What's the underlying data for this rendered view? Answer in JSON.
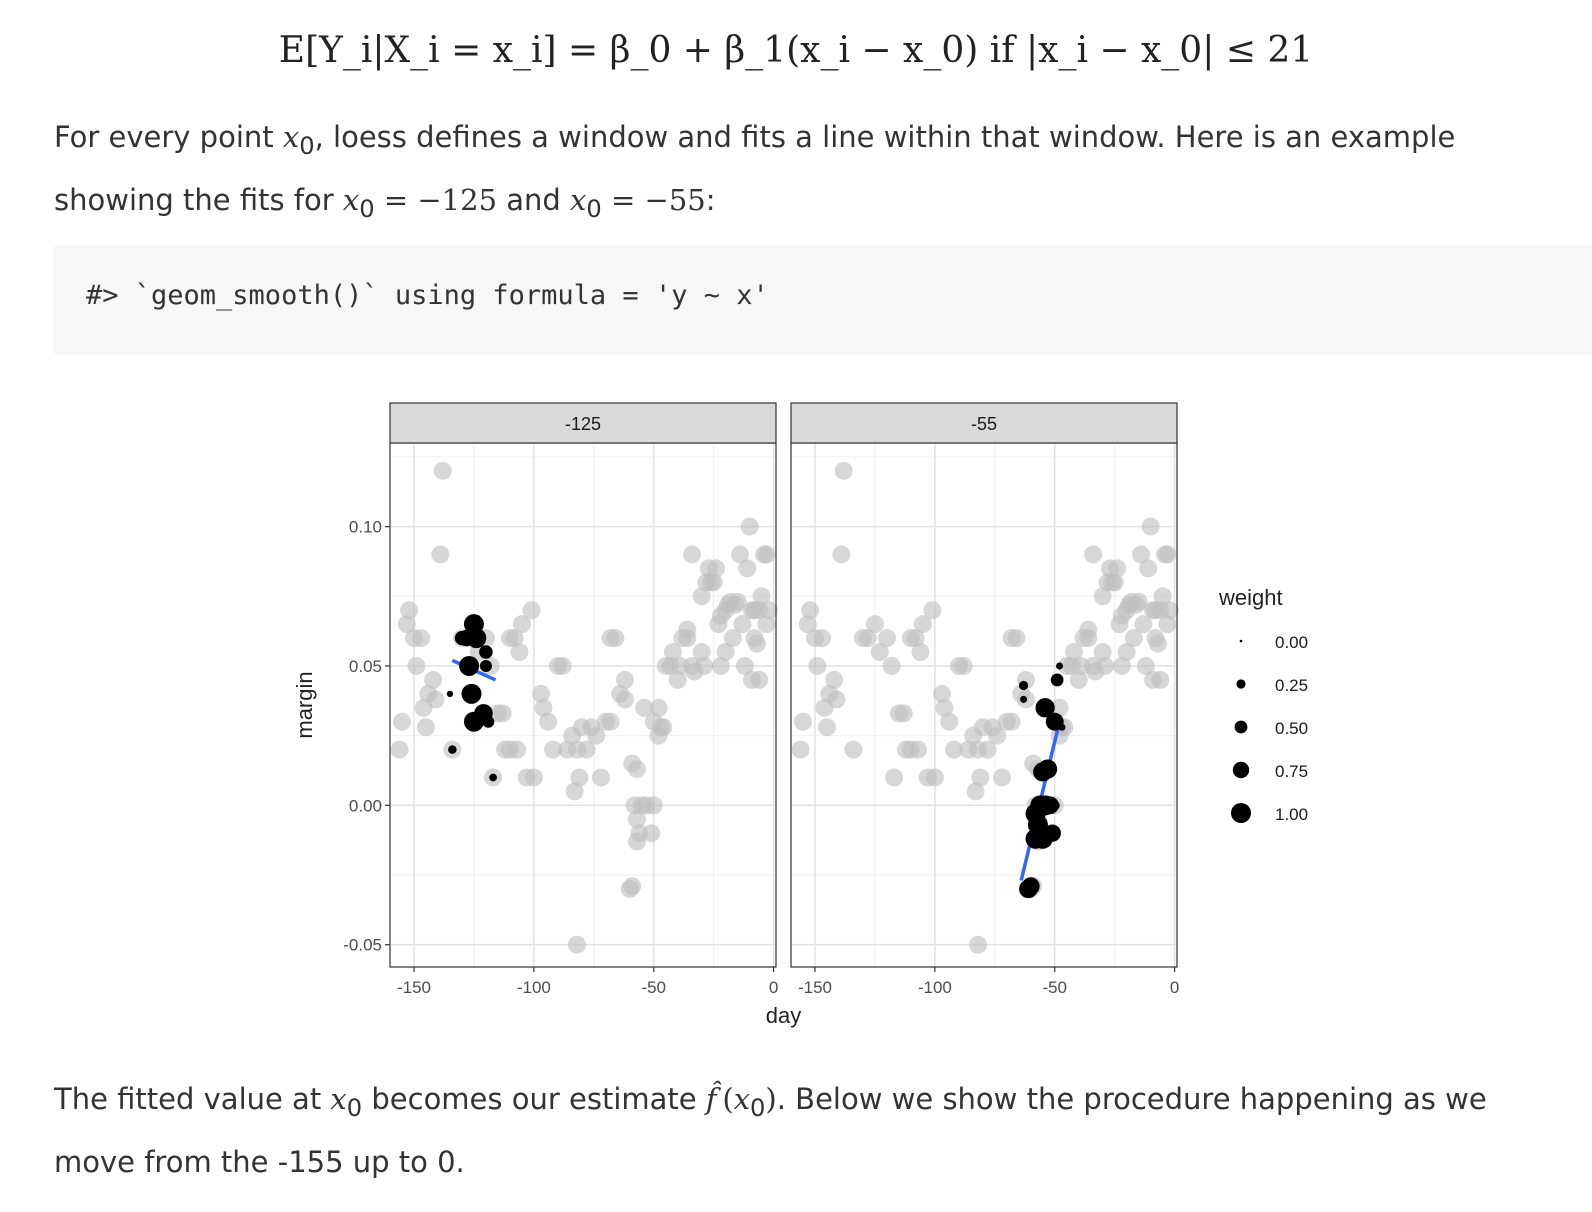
{
  "equation": "E[Y_i|X_i = x_i] = β_0 + β_1(x_i − x_0) if |x_i − x_0| ≤ 21",
  "paragraph1": {
    "t1": "For every point ",
    "t2": ", loess defines a window and fits a line within that window. Here is an example",
    "t3": "showing the fits for ",
    "v1": "−125",
    "t4": " and ",
    "v2": "−55",
    "t5": ":"
  },
  "code_output": "#> `geom_smooth()` using formula = 'y ~ x'",
  "paragraph2": {
    "t1": "The fitted value at ",
    "t2": " becomes our estimate ",
    "t3": ". Below we show the procedure happening as we",
    "t4": "move from the -155 up to 0."
  },
  "chart_data": {
    "type": "scatter",
    "xlabel": "day",
    "ylabel": "margin",
    "xlim": [
      -160,
      1
    ],
    "ylim": [
      -0.058,
      0.13
    ],
    "xticks": [
      -150,
      -100,
      -50,
      0
    ],
    "xtick_labels": [
      "-150",
      "-100",
      "-50",
      "0"
    ],
    "yticks": [
      -0.05,
      0.0,
      0.05,
      0.1
    ],
    "ytick_labels": [
      "-0.05",
      "0.00",
      "0.05",
      "0.10"
    ],
    "grid": true,
    "theme": "bw",
    "colors": {
      "background_points": "#bfbfbf",
      "weighted_points": "#000000",
      "fit_line": "#3366ff",
      "strip": "#d9d9d9"
    },
    "legend": {
      "title": "weight",
      "position": "right",
      "entries": [
        {
          "label": "0.00",
          "weight": 0.0
        },
        {
          "label": "0.25",
          "weight": 0.25
        },
        {
          "label": "0.50",
          "weight": 0.5
        },
        {
          "label": "0.75",
          "weight": 0.75
        },
        {
          "label": "1.00",
          "weight": 1.0
        }
      ]
    },
    "points": [
      [
        -155,
        0.03
      ],
      [
        -153,
        0.065
      ],
      [
        -152,
        0.07
      ],
      [
        -150,
        0.06
      ],
      [
        -147,
        0.06
      ],
      [
        -156,
        0.02
      ],
      [
        -149,
        0.05
      ],
      [
        -146,
        0.035
      ],
      [
        -144,
        0.04
      ],
      [
        -142,
        0.045
      ],
      [
        -141,
        0.038
      ],
      [
        -145,
        0.028
      ],
      [
        -134,
        0.02
      ],
      [
        -138,
        0.12
      ],
      [
        -139,
        0.09
      ],
      [
        -130,
        0.06
      ],
      [
        -128,
        0.06
      ],
      [
        -125,
        0.065
      ],
      [
        -123,
        0.055
      ],
      [
        -120,
        0.06
      ],
      [
        -118,
        0.05
      ],
      [
        -115,
        0.033
      ],
      [
        -117,
        0.01
      ],
      [
        -113,
        0.033
      ],
      [
        -112,
        0.02
      ],
      [
        -110,
        0.06
      ],
      [
        -108,
        0.06
      ],
      [
        -106,
        0.055
      ],
      [
        -105,
        0.065
      ],
      [
        -101,
        0.07
      ],
      [
        -110,
        0.02
      ],
      [
        -107,
        0.02
      ],
      [
        -103,
        0.01
      ],
      [
        -100,
        0.01
      ],
      [
        -97,
        0.04
      ],
      [
        -96,
        0.035
      ],
      [
        -94,
        0.03
      ],
      [
        -92,
        0.02
      ],
      [
        -90,
        0.05
      ],
      [
        -88,
        0.05
      ],
      [
        -86,
        0.02
      ],
      [
        -84,
        0.025
      ],
      [
        -82,
        0.02
      ],
      [
        -81,
        0.01
      ],
      [
        -83,
        0.005
      ],
      [
        -80,
        0.028
      ],
      [
        -78,
        0.02
      ],
      [
        -76,
        0.028
      ],
      [
        -74,
        0.025
      ],
      [
        -72,
        0.01
      ],
      [
        -70,
        0.03
      ],
      [
        -68,
        0.03
      ],
      [
        -68,
        0.06
      ],
      [
        -66,
        0.06
      ],
      [
        -64,
        0.04
      ],
      [
        -62,
        0.045
      ],
      [
        -62,
        0.038
      ],
      [
        -59,
        0.015
      ],
      [
        -57,
        0.013
      ],
      [
        -58,
        0.0
      ],
      [
        -57,
        -0.005
      ],
      [
        -55,
        0.0
      ],
      [
        -56,
        -0.01
      ],
      [
        -57,
        -0.013
      ],
      [
        -60,
        -0.03
      ],
      [
        -59,
        -0.029
      ],
      [
        -53,
        0.0
      ],
      [
        -50,
        0.0
      ],
      [
        -51,
        -0.01
      ],
      [
        -82,
        -0.05
      ],
      [
        -54,
        0.035
      ],
      [
        -50,
        0.03
      ],
      [
        -48,
        0.025
      ],
      [
        -47,
        0.028
      ],
      [
        -46,
        0.028
      ],
      [
        -48,
        0.035
      ],
      [
        -45,
        0.05
      ],
      [
        -43,
        0.05
      ],
      [
        -42,
        0.055
      ],
      [
        -40,
        0.045
      ],
      [
        -39,
        0.05
      ],
      [
        -38,
        0.06
      ],
      [
        -36,
        0.063
      ],
      [
        -34,
        0.05
      ],
      [
        -33,
        0.048
      ],
      [
        -30,
        0.075
      ],
      [
        -30,
        0.055
      ],
      [
        -29,
        0.05
      ],
      [
        -28,
        0.08
      ],
      [
        -27,
        0.085
      ],
      [
        -26,
        0.08
      ],
      [
        -25,
        0.08
      ],
      [
        -24,
        0.085
      ],
      [
        -23,
        0.065
      ],
      [
        -22,
        0.068
      ],
      [
        -20,
        0.07
      ],
      [
        -19,
        0.072
      ],
      [
        -18,
        0.073
      ],
      [
        -17,
        0.06
      ],
      [
        -16,
        0.072
      ],
      [
        -15,
        0.073
      ],
      [
        -14,
        0.09
      ],
      [
        -13,
        0.065
      ],
      [
        -12,
        0.05
      ],
      [
        -11,
        0.085
      ],
      [
        -10,
        0.1
      ],
      [
        -9,
        0.07
      ],
      [
        -8,
        0.07
      ],
      [
        -8,
        0.06
      ],
      [
        -7,
        0.058
      ],
      [
        -6,
        0.045
      ],
      [
        -5,
        0.075
      ],
      [
        -4,
        0.09
      ],
      [
        -3,
        0.09
      ],
      [
        -3,
        0.065
      ],
      [
        -2,
        0.07
      ],
      [
        -9,
        0.045
      ],
      [
        -6,
        0.07
      ],
      [
        -20,
        0.055
      ],
      [
        -22,
        0.05
      ],
      [
        -34,
        0.09
      ],
      [
        -36,
        0.06
      ]
    ],
    "panels": [
      {
        "label": "-125",
        "center": -125,
        "weighted_points": [
          [
            -130,
            0.06,
            0.6
          ],
          [
            -128,
            0.06,
            0.75
          ],
          [
            -125,
            0.065,
            1.0
          ],
          [
            -124,
            0.06,
            1.0
          ],
          [
            -127,
            0.05,
            1.0
          ],
          [
            -126,
            0.04,
            1.0
          ],
          [
            -125,
            0.03,
            1.0
          ],
          [
            -121,
            0.033,
            0.9
          ],
          [
            -120,
            0.055,
            0.55
          ],
          [
            -120,
            0.05,
            0.45
          ],
          [
            -119,
            0.03,
            0.45
          ],
          [
            -134,
            0.02,
            0.2
          ],
          [
            -135,
            0.04,
            0.05
          ],
          [
            -117,
            0.01,
            0.15
          ]
        ],
        "fit": [
          [
            -134,
            0.052
          ],
          [
            -116,
            0.045
          ]
        ]
      },
      {
        "label": "-55",
        "center": -55,
        "weighted_points": [
          [
            -54,
            0.035,
            0.95
          ],
          [
            -50,
            0.03,
            0.85
          ],
          [
            -47,
            0.028,
            0.1
          ],
          [
            -48,
            0.05,
            0.1
          ],
          [
            -49,
            0.045,
            0.5
          ],
          [
            -63,
            0.043,
            0.25
          ],
          [
            -63,
            0.038,
            0.1
          ],
          [
            -55,
            0.012,
            0.95
          ],
          [
            -53,
            0.013,
            0.95
          ],
          [
            -56,
            0.0,
            1.0
          ],
          [
            -54,
            0.0,
            1.0
          ],
          [
            -52,
            0.0,
            0.85
          ],
          [
            -58,
            -0.003,
            1.0
          ],
          [
            -50,
            0.0,
            0.3
          ],
          [
            -57,
            -0.007,
            1.0
          ],
          [
            -58,
            -0.012,
            1.0
          ],
          [
            -55,
            -0.012,
            1.0
          ],
          [
            -51,
            -0.01,
            0.8
          ],
          [
            -61,
            -0.03,
            0.9
          ],
          [
            -60,
            -0.029,
            0.85
          ]
        ],
        "fit": [
          [
            -64,
            -0.027
          ],
          [
            -48,
            0.03
          ]
        ]
      }
    ]
  }
}
